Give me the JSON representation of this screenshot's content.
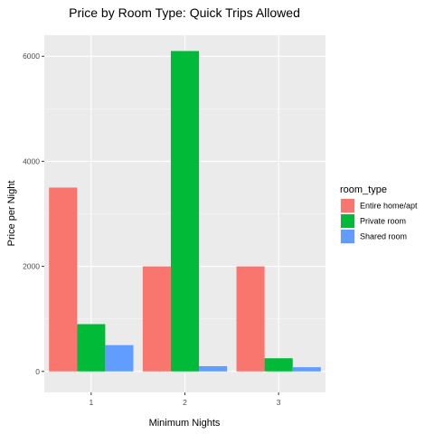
{
  "chart_data": {
    "type": "bar",
    "title": "Price by Room Type: Quick Trips Allowed",
    "xlabel": "Minimum Nights",
    "ylabel": "Price per Night",
    "categories": [
      "1",
      "2",
      "3"
    ],
    "ylim": [
      -400,
      6400
    ],
    "y_ticks": [
      0,
      2000,
      4000,
      6000
    ],
    "y_tick_labels": [
      "0",
      "2000",
      "4000",
      "6000"
    ],
    "grid": true,
    "legend_title": "room_type",
    "legend_position": "right",
    "series": [
      {
        "name": "Entire home/apt",
        "color": "#F8766D",
        "values": [
          3500,
          2000,
          2000
        ]
      },
      {
        "name": "Private room",
        "color": "#00BA38",
        "values": [
          900,
          6100,
          250
        ]
      },
      {
        "name": "Shared room",
        "color": "#619CFF",
        "values": [
          500,
          100,
          80
        ]
      }
    ]
  }
}
